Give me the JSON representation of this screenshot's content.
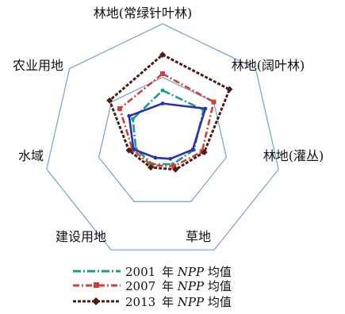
{
  "chart_data": {
    "type": "radar",
    "axes": [
      "林地(常绿针叶林)",
      "林地(阔叶林)",
      "林地(灌丛)",
      "草地",
      "建设用地",
      "水域",
      "农业用地"
    ],
    "rmax": 1.0,
    "grid": {
      "levels": [
        0.55,
        1.0
      ],
      "shape": "heptagon",
      "color": "#7fa7cf"
    },
    "series": [
      {
        "name_year": "2001",
        "name_italic": "NPP",
        "name_tail": "均值",
        "color": "#1a9b8c",
        "dash": "10,3,2,3",
        "values": [
          0.44,
          0.44,
          0.27,
          0.2,
          0.2,
          0.23,
          0.32
        ]
      },
      {
        "name_year": "2007",
        "name_italic": "NPP",
        "name_tail": "均值",
        "color": "#c9433a",
        "dash": "8,3,2,3",
        "values": [
          0.58,
          0.55,
          0.34,
          0.22,
          0.21,
          0.26,
          0.46
        ]
      },
      {
        "name_year": "2013",
        "name_italic": "NPP",
        "name_tail": "均值",
        "color": "#4a1f12",
        "dash": "4,2",
        "values": [
          0.74,
          0.72,
          0.36,
          0.25,
          0.23,
          0.29,
          0.57
        ]
      },
      {
        "name_year": "",
        "name_italic": "",
        "name_tail": "",
        "color": "#2b2fb0",
        "dash": "",
        "values": [
          0.33,
          0.46,
          0.26,
          0.15,
          0.14,
          0.25,
          0.36
        ]
      }
    ]
  }
}
